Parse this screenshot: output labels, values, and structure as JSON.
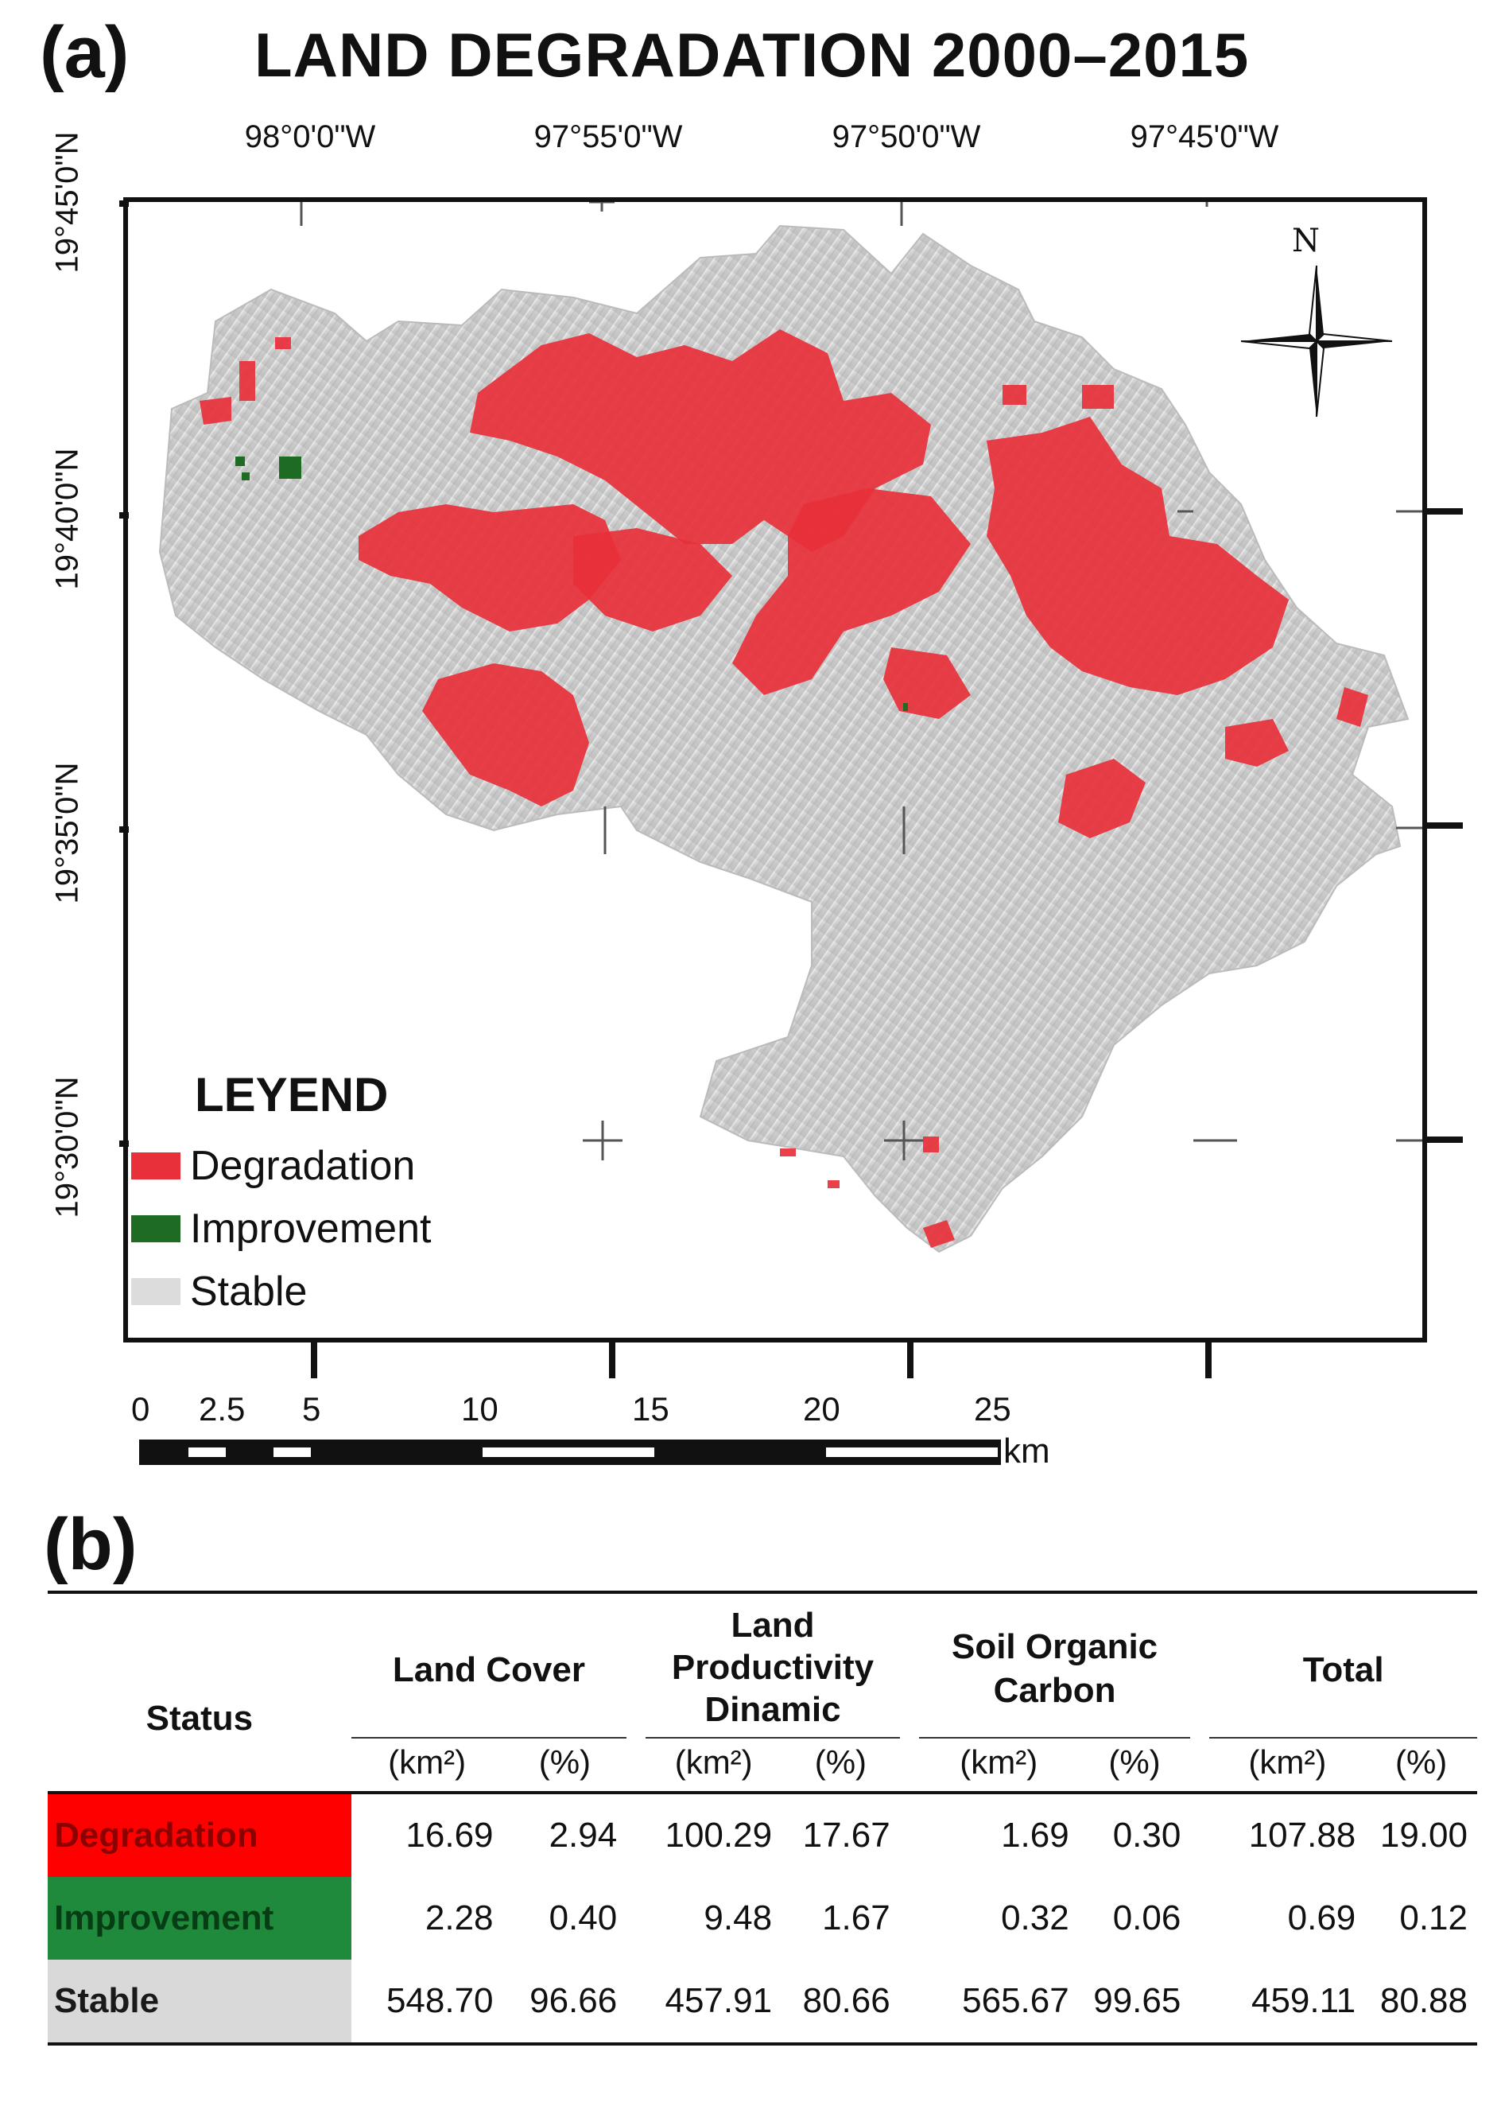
{
  "panel_a_label": "(a)",
  "map_title": "LAND DEGRADATION  2000–2015",
  "longitude_labels": [
    "98°0'0\"W",
    "97°55'0\"W",
    "97°50'0\"W",
    "97°45'0\"W"
  ],
  "latitude_labels": [
    "19°45'0\"N",
    "19°40'0\"N",
    "19°35'0\"N",
    "19°30'0\"N"
  ],
  "north_arrow_label": "N",
  "legend": {
    "title": "LEYEND",
    "items": [
      {
        "label": "Degradation",
        "color": "#e8303a"
      },
      {
        "label": "Improvement",
        "color": "#1e6b24"
      },
      {
        "label": "Stable",
        "color": "#dcdcdc"
      }
    ]
  },
  "scale_bar": {
    "ticks": [
      "0",
      "2.5",
      "5",
      "10",
      "15",
      "20",
      "25"
    ],
    "unit": "km"
  },
  "panel_b_label": "(b)",
  "table": {
    "header_status": "Status",
    "groups": [
      {
        "title": "Land Cover"
      },
      {
        "title": "Land Productivity Dinamic"
      },
      {
        "title": "Soil Organic Carbon"
      },
      {
        "title": "Total"
      }
    ],
    "unit_area": "(km²)",
    "unit_pct": "(%)",
    "rows": [
      {
        "status": "Degradation",
        "color": "#ff0000",
        "text_color": "#8b0000",
        "values": [
          "16.69",
          "2.94",
          "100.29",
          "17.67",
          "1.69",
          "0.30",
          "107.88",
          "19.00"
        ]
      },
      {
        "status": "Improvement",
        "color": "#1f8a3c",
        "text_color": "#063d14",
        "values": [
          "2.28",
          "0.40",
          "9.48",
          "1.67",
          "0.32",
          "0.06",
          "0.69",
          "0.12"
        ]
      },
      {
        "status": "Stable",
        "color": "#d9d9d9",
        "text_color": "#1a1a1a",
        "values": [
          "548.70",
          "96.66",
          "457.91",
          "80.66",
          "565.67",
          "99.65",
          "459.11",
          "80.88"
        ]
      }
    ]
  },
  "colors": {
    "degradation": "#e8303a",
    "improvement": "#1e6b24",
    "stable_terrain": "#cfcfcf"
  }
}
